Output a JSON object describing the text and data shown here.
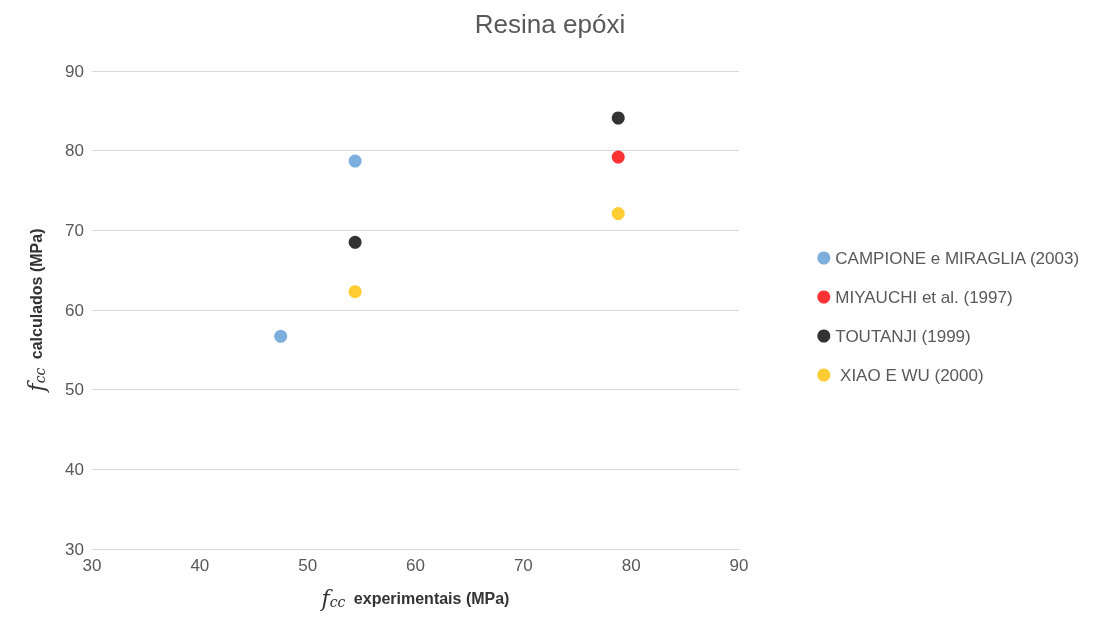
{
  "chart_data": {
    "type": "scatter",
    "title": "Resina epóxi",
    "xlabel": "f$_{cc}$ experimentais (MPa)",
    "ylabel": "f$_{cc}$ calculados (MPa)",
    "xlim": [
      30,
      90
    ],
    "xticks": [
      30,
      40,
      50,
      60,
      70,
      80,
      90
    ],
    "ylim": [
      30,
      90
    ],
    "yticks": [
      30,
      40,
      50,
      60,
      70,
      80,
      90
    ],
    "grid": "y",
    "legend": "right",
    "marker": "circle",
    "series": [
      {
        "name": "CAMPIONE e MIRAGLIA (2003)",
        "color": "#5b9bd5",
        "x": [
          47.5,
          54.4
        ],
        "values": [
          56.7,
          78.7
        ]
      },
      {
        "name": "MIYAUCHI et al. (1997)",
        "color": "#ff0000",
        "x": [
          78.8
        ],
        "values": [
          79.2
        ]
      },
      {
        "name": "TOUTANJI (1999)",
        "color": "#000000",
        "x": [
          54.4,
          78.8
        ],
        "values": [
          68.5,
          84.1
        ]
      },
      {
        "name": " XIAO E WU (2000)",
        "color": "#ffc000",
        "x": [
          54.4,
          78.8
        ],
        "values": [
          62.3,
          72.1
        ]
      }
    ]
  }
}
